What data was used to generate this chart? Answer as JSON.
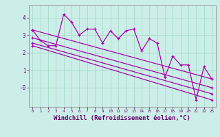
{
  "background_color": "#cceee8",
  "grid_color": "#aaddcc",
  "line_color": "#aa00aa",
  "xlim": [
    -0.5,
    23.5
  ],
  "ylim": [
    -1.1,
    4.7
  ],
  "xlabel": "Windchill (Refroidissement éolien,°C)",
  "xlabel_fontsize": 6.5,
  "ytick_labels": [
    "-0",
    "1",
    "2",
    "3",
    "4"
  ],
  "ytick_vals": [
    0,
    1,
    2,
    3,
    4
  ],
  "xtick_labels": [
    "0",
    "1",
    "2",
    "3",
    "4",
    "5",
    "6",
    "7",
    "8",
    "9",
    "10",
    "11",
    "12",
    "13",
    "14",
    "15",
    "16",
    "17",
    "18",
    "19",
    "20",
    "21",
    "22",
    "23"
  ],
  "series1_x": [
    0,
    1,
    2,
    3,
    4,
    5,
    6,
    7,
    8,
    9,
    10,
    11,
    12,
    13,
    14,
    15,
    16,
    17,
    18,
    19,
    20,
    21,
    22,
    23
  ],
  "series1_y": [
    3.3,
    2.7,
    2.4,
    2.4,
    4.2,
    3.75,
    3.0,
    3.35,
    3.35,
    2.55,
    3.25,
    2.8,
    3.25,
    3.35,
    2.1,
    2.8,
    2.55,
    0.6,
    1.8,
    1.3,
    1.3,
    -0.7,
    1.2,
    0.5
  ],
  "series2_x": [
    0,
    23
  ],
  "series2_y": [
    3.3,
    0.5
  ],
  "series3_x": [
    0,
    23
  ],
  "series3_y": [
    2.85,
    0.0
  ],
  "series4_x": [
    0,
    23
  ],
  "series4_y": [
    2.55,
    -0.35
  ],
  "series5_x": [
    0,
    23
  ],
  "series5_y": [
    2.4,
    -0.7
  ]
}
